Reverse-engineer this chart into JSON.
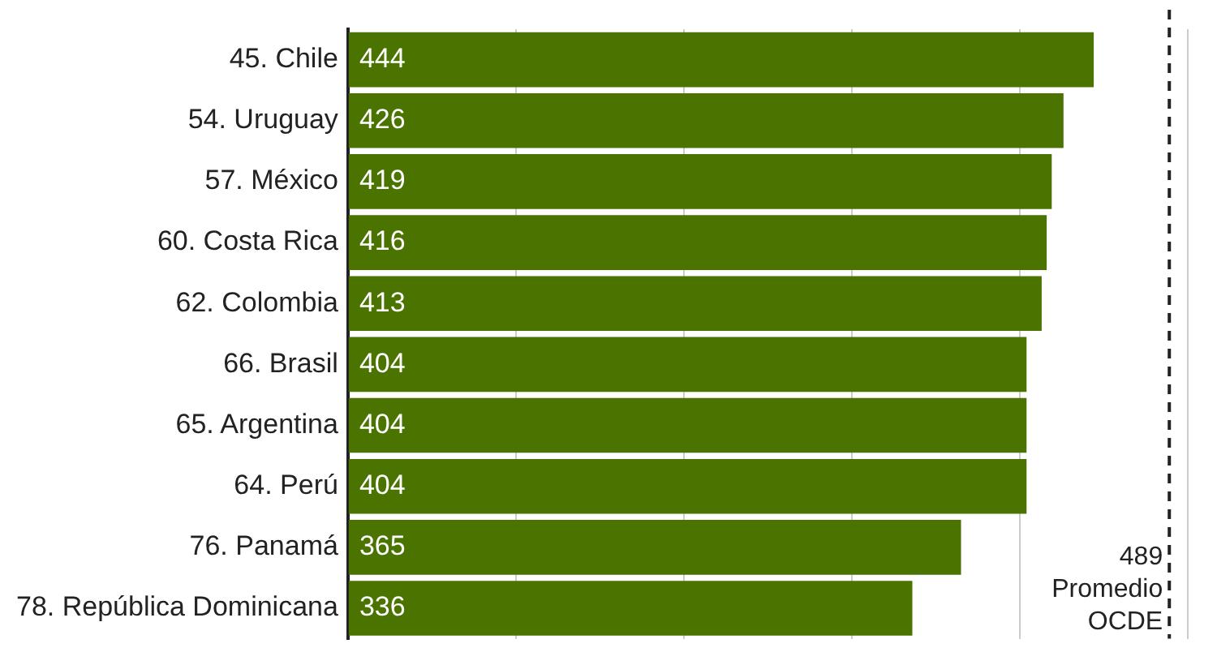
{
  "chart_data": {
    "type": "bar",
    "orientation": "horizontal",
    "categories": [
      "45. Chile",
      "54. Uruguay",
      "57. México",
      "60. Costa Rica",
      "62. Colombia",
      "66. Brasil",
      "65. Argentina",
      "64. Perú",
      "76. Panamá",
      "78. República Dominicana"
    ],
    "values": [
      444,
      426,
      419,
      416,
      413,
      404,
      404,
      404,
      365,
      336
    ],
    "color": "#4a7300",
    "data_labels": true,
    "xlim": [
      0,
      500
    ],
    "xticks": [
      {
        "value": 0,
        "label": null
      },
      {
        "value": 100,
        "label": null
      },
      {
        "value": 200,
        "label": null
      },
      {
        "value": 300,
        "label": null
      },
      {
        "value": 400,
        "label": null
      },
      {
        "value": 500,
        "label": null
      }
    ],
    "grid": "x",
    "tick_labels": "y",
    "ref_lines": [
      {
        "axis": "x",
        "value": 489,
        "label": "489\nPromedio\nOCDE",
        "line_style": "dashed"
      }
    ]
  }
}
